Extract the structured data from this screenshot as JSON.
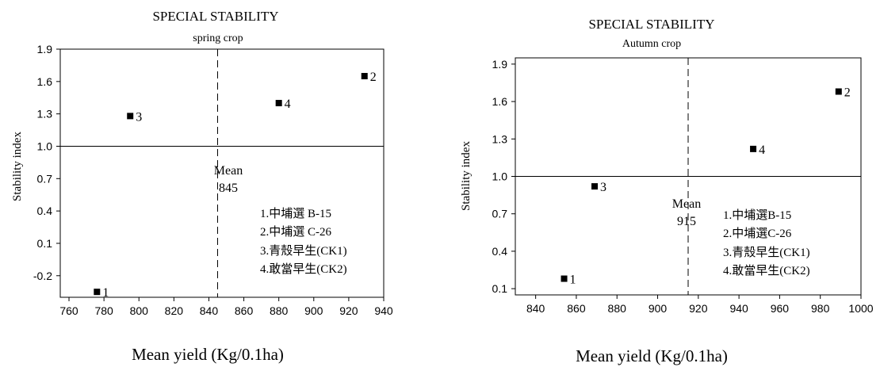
{
  "chart_data": [
    {
      "type": "scatter",
      "title": "SPECIAL  STABILITY",
      "subtitle": "spring   crop",
      "xlabel": "Mean yield (Kg/0.1ha)",
      "ylabel": "Stability  index",
      "xlim": [
        755,
        940
      ],
      "ylim": [
        -0.4,
        1.9
      ],
      "xticks": [
        "760",
        "780",
        "800",
        "820",
        "840",
        "860",
        "880",
        "900",
        "920",
        "940"
      ],
      "yticks": [
        "1.9",
        "1.6",
        "1.3",
        "1.0",
        "0.7",
        "0.4",
        "0.1",
        "-0.2"
      ],
      "grid": false,
      "reference_lines": {
        "y": 1.0,
        "x": 845
      },
      "mean_label": "Mean",
      "mean_value": "845",
      "points": [
        {
          "x": 776,
          "y": -0.35,
          "label": "1"
        },
        {
          "x": 929,
          "y": 1.65,
          "label": "2"
        },
        {
          "x": 795,
          "y": 1.28,
          "label": "3"
        },
        {
          "x": 880,
          "y": 1.4,
          "label": "4"
        }
      ],
      "legend": [
        "1.中埔選 B-15",
        "2.中埔選 C-26",
        "3.青殼早生(CK1)",
        "4.敢當早生(CK2)"
      ]
    },
    {
      "type": "scatter",
      "title": "SPECIAL  STABILITY",
      "subtitle": "Autumn    crop",
      "xlabel": "Mean yield (Kg/0.1ha)",
      "ylabel": "Stability  index",
      "xlim": [
        830,
        1000
      ],
      "ylim": [
        0.05,
        1.95
      ],
      "xticks": [
        "840",
        "860",
        "880",
        "900",
        "920",
        "940",
        "960",
        "980",
        "1000"
      ],
      "yticks": [
        "1.9",
        "1.6",
        "1.3",
        "1.0",
        "0.7",
        "0.4",
        "0.1"
      ],
      "grid": false,
      "reference_lines": {
        "y": 1.0,
        "x": 915
      },
      "mean_label": "Mean",
      "mean_value": "915",
      "points": [
        {
          "x": 854,
          "y": 0.18,
          "label": "1"
        },
        {
          "x": 989,
          "y": 1.68,
          "label": "2"
        },
        {
          "x": 869,
          "y": 0.92,
          "label": "3"
        },
        {
          "x": 947,
          "y": 1.22,
          "label": "4"
        }
      ],
      "legend": [
        "1.中埔選B-15",
        "2.中埔選C-26",
        "3.青殼早生(CK1)",
        "4.敢當早生(CK2)"
      ]
    }
  ]
}
